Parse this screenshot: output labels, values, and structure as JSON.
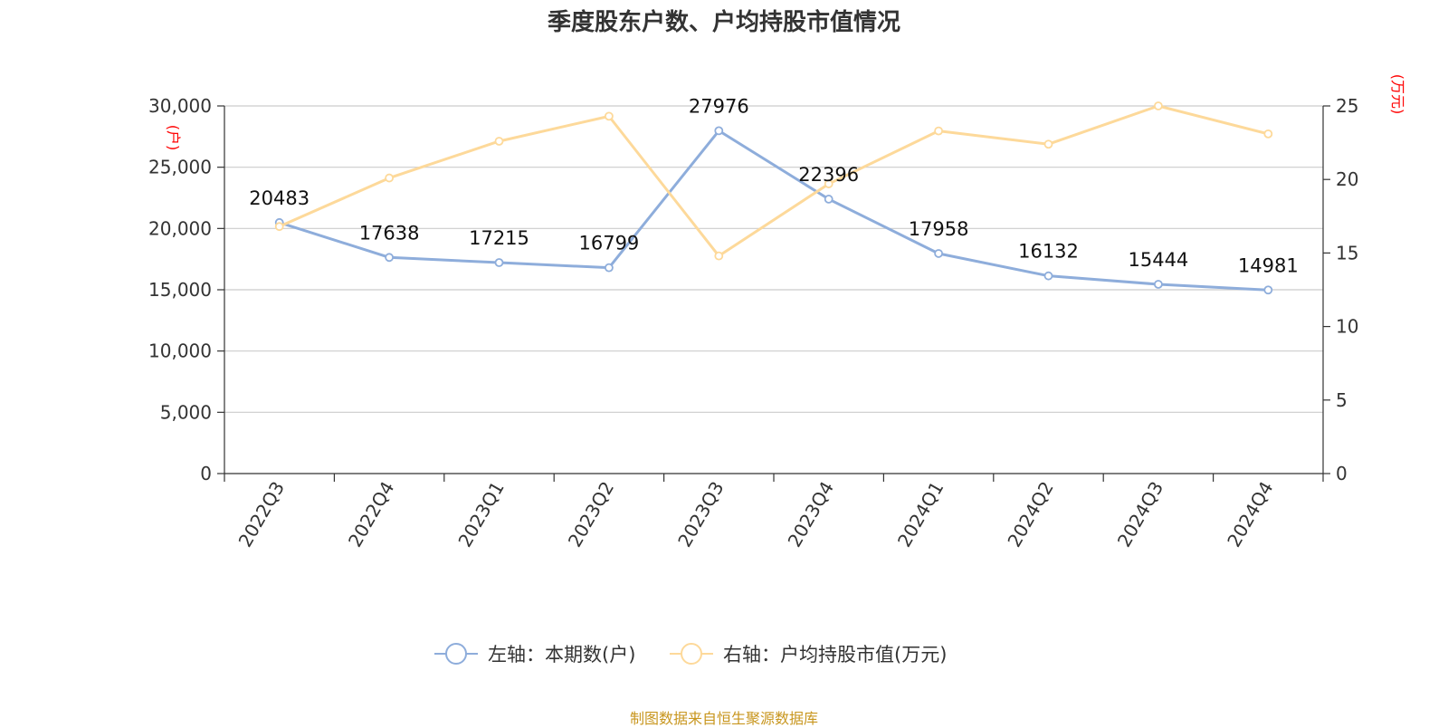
{
  "chart_data": {
    "type": "line",
    "title": "季度股东户数、户均持股市值情况",
    "categories": [
      "2022Q3",
      "2022Q4",
      "2023Q1",
      "2023Q2",
      "2023Q3",
      "2023Q4",
      "2024Q1",
      "2024Q2",
      "2024Q3",
      "2024Q4"
    ],
    "y_left": {
      "unit": "(户)",
      "ylim": [
        0,
        30000
      ],
      "ticks": [
        0,
        5000,
        10000,
        15000,
        20000,
        25000,
        30000
      ],
      "tick_labels": [
        "0",
        "5,000",
        "10,000",
        "15,000",
        "20,000",
        "25,000",
        "30,000"
      ]
    },
    "y_right": {
      "unit": "(万元)",
      "ylim": [
        0,
        25
      ],
      "ticks": [
        0,
        5,
        10,
        15,
        20,
        25
      ],
      "tick_labels": [
        "0",
        "5",
        "10",
        "15",
        "20",
        "25"
      ]
    },
    "series": [
      {
        "name": "左轴：本期数(户)",
        "axis": "left",
        "color": "#8eaddb",
        "values": [
          20483,
          17638,
          17215,
          16799,
          27976,
          22396,
          17958,
          16132,
          15444,
          14981
        ],
        "labels": [
          "20483",
          "17638",
          "17215",
          "16799",
          "27976",
          "22396",
          "17958",
          "16132",
          "15444",
          "14981"
        ]
      },
      {
        "name": "右轴：户均持股市值(万元)",
        "axis": "right",
        "color": "#fdd99a",
        "values": [
          16.8,
          20.1,
          22.6,
          24.3,
          14.8,
          19.7,
          23.3,
          22.4,
          25.0,
          23.1
        ]
      }
    ],
    "grid": true,
    "legend_position": "bottom-center"
  },
  "source_text": "制图数据来自恒生聚源数据库"
}
